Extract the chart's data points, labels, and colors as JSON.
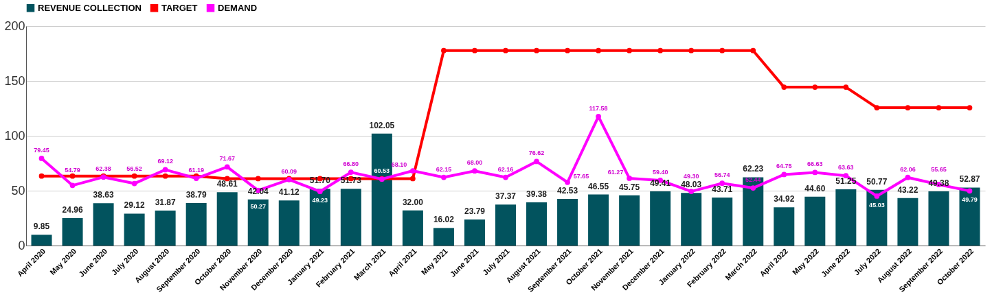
{
  "chart_data": {
    "type": "bar",
    "categories": [
      "April 2020",
      "May 2020",
      "June 2020",
      "July 2020",
      "August 2020",
      "September 2020",
      "October 2020",
      "November 2020",
      "December 2020",
      "January 2021",
      "February 2021",
      "March 2021",
      "April 2021",
      "May 2021",
      "June 2021",
      "July 2021",
      "August 2021",
      "September 2021",
      "October 2021",
      "November 2021",
      "December 2021",
      "January 2022",
      "February 2022",
      "March 2022",
      "April 2022",
      "May 2022",
      "June 2022",
      "July 2022",
      "August 2022",
      "September 2022",
      "October 2022"
    ],
    "series": [
      {
        "name": "REVENUE COLLECTION",
        "color": "#02535e",
        "values": [
          9.85,
          24.96,
          38.63,
          29.12,
          31.87,
          38.79,
          48.61,
          42.04,
          41.12,
          51.7,
          51.73,
          102.05,
          32.0,
          16.02,
          23.79,
          37.37,
          39.38,
          42.53,
          46.55,
          45.75,
          49.41,
          48.03,
          43.71,
          62.23,
          34.92,
          44.6,
          51.25,
          50.77,
          43.22,
          49.38,
          52.87
        ],
        "value_labels": [
          "9.85",
          "24.96",
          "38.63",
          "29.12",
          "31.87",
          "38.79",
          "48.61",
          "42.04",
          "41.12",
          "51.70",
          "51.73",
          "102.05",
          "32.00",
          "16.02",
          "23.79",
          "37.37",
          "39.38",
          "42.53",
          "46.55",
          "45.75",
          "49.41",
          "48.03",
          "43.71",
          "62.23",
          "34.92",
          "44.60",
          "51.25",
          "50.77",
          "43.22",
          "49.38",
          "52.87"
        ]
      },
      {
        "name": "TARGET",
        "type": "line",
        "color": "#ff0000",
        "marker": "circle",
        "values": [
          63.3,
          63.3,
          63.3,
          63.3,
          63.3,
          63.3,
          61,
          61,
          61,
          61,
          61,
          61,
          61,
          177.7,
          177.7,
          177.7,
          177.7,
          177.7,
          177.7,
          177.7,
          177.7,
          177.7,
          177.7,
          177.7,
          144.3,
          144.3,
          144.3,
          125.6,
          125.6,
          125.6,
          125.6
        ]
      },
      {
        "name": "DEMAND",
        "type": "line",
        "color": "#ff00ff",
        "marker": "circle",
        "values": [
          79.45,
          54.79,
          62.38,
          56.52,
          69.12,
          61.19,
          71.67,
          50.27,
          60.09,
          49.23,
          66.8,
          60.53,
          68.1,
          62.15,
          68.0,
          62.16,
          76.62,
          57.65,
          117.58,
          61.27,
          59.4,
          49.3,
          56.74,
          52.44,
          64.75,
          66.63,
          63.63,
          45.03,
          62.06,
          55.65,
          49.79
        ],
        "value_labels": [
          "79.45",
          "54.79",
          "62.38",
          "56.52",
          "69.12",
          "61.19",
          "71.67",
          "50.27",
          "60.09",
          "49.23",
          "66.80",
          "60.53",
          "68.10",
          "62.15",
          "68.00",
          "62.16",
          "76.62",
          "57.65",
          "117.58",
          "61.27",
          "59.40",
          "49.30",
          "56.74",
          "52.44",
          "64.75",
          "66.63",
          "63.63",
          "45.03",
          "62.06",
          "55.65",
          "49.79"
        ]
      }
    ],
    "ylim": [
      0,
      200
    ],
    "yticks": [
      0,
      50,
      100,
      150,
      200
    ],
    "grid": "y",
    "legend": "top"
  }
}
